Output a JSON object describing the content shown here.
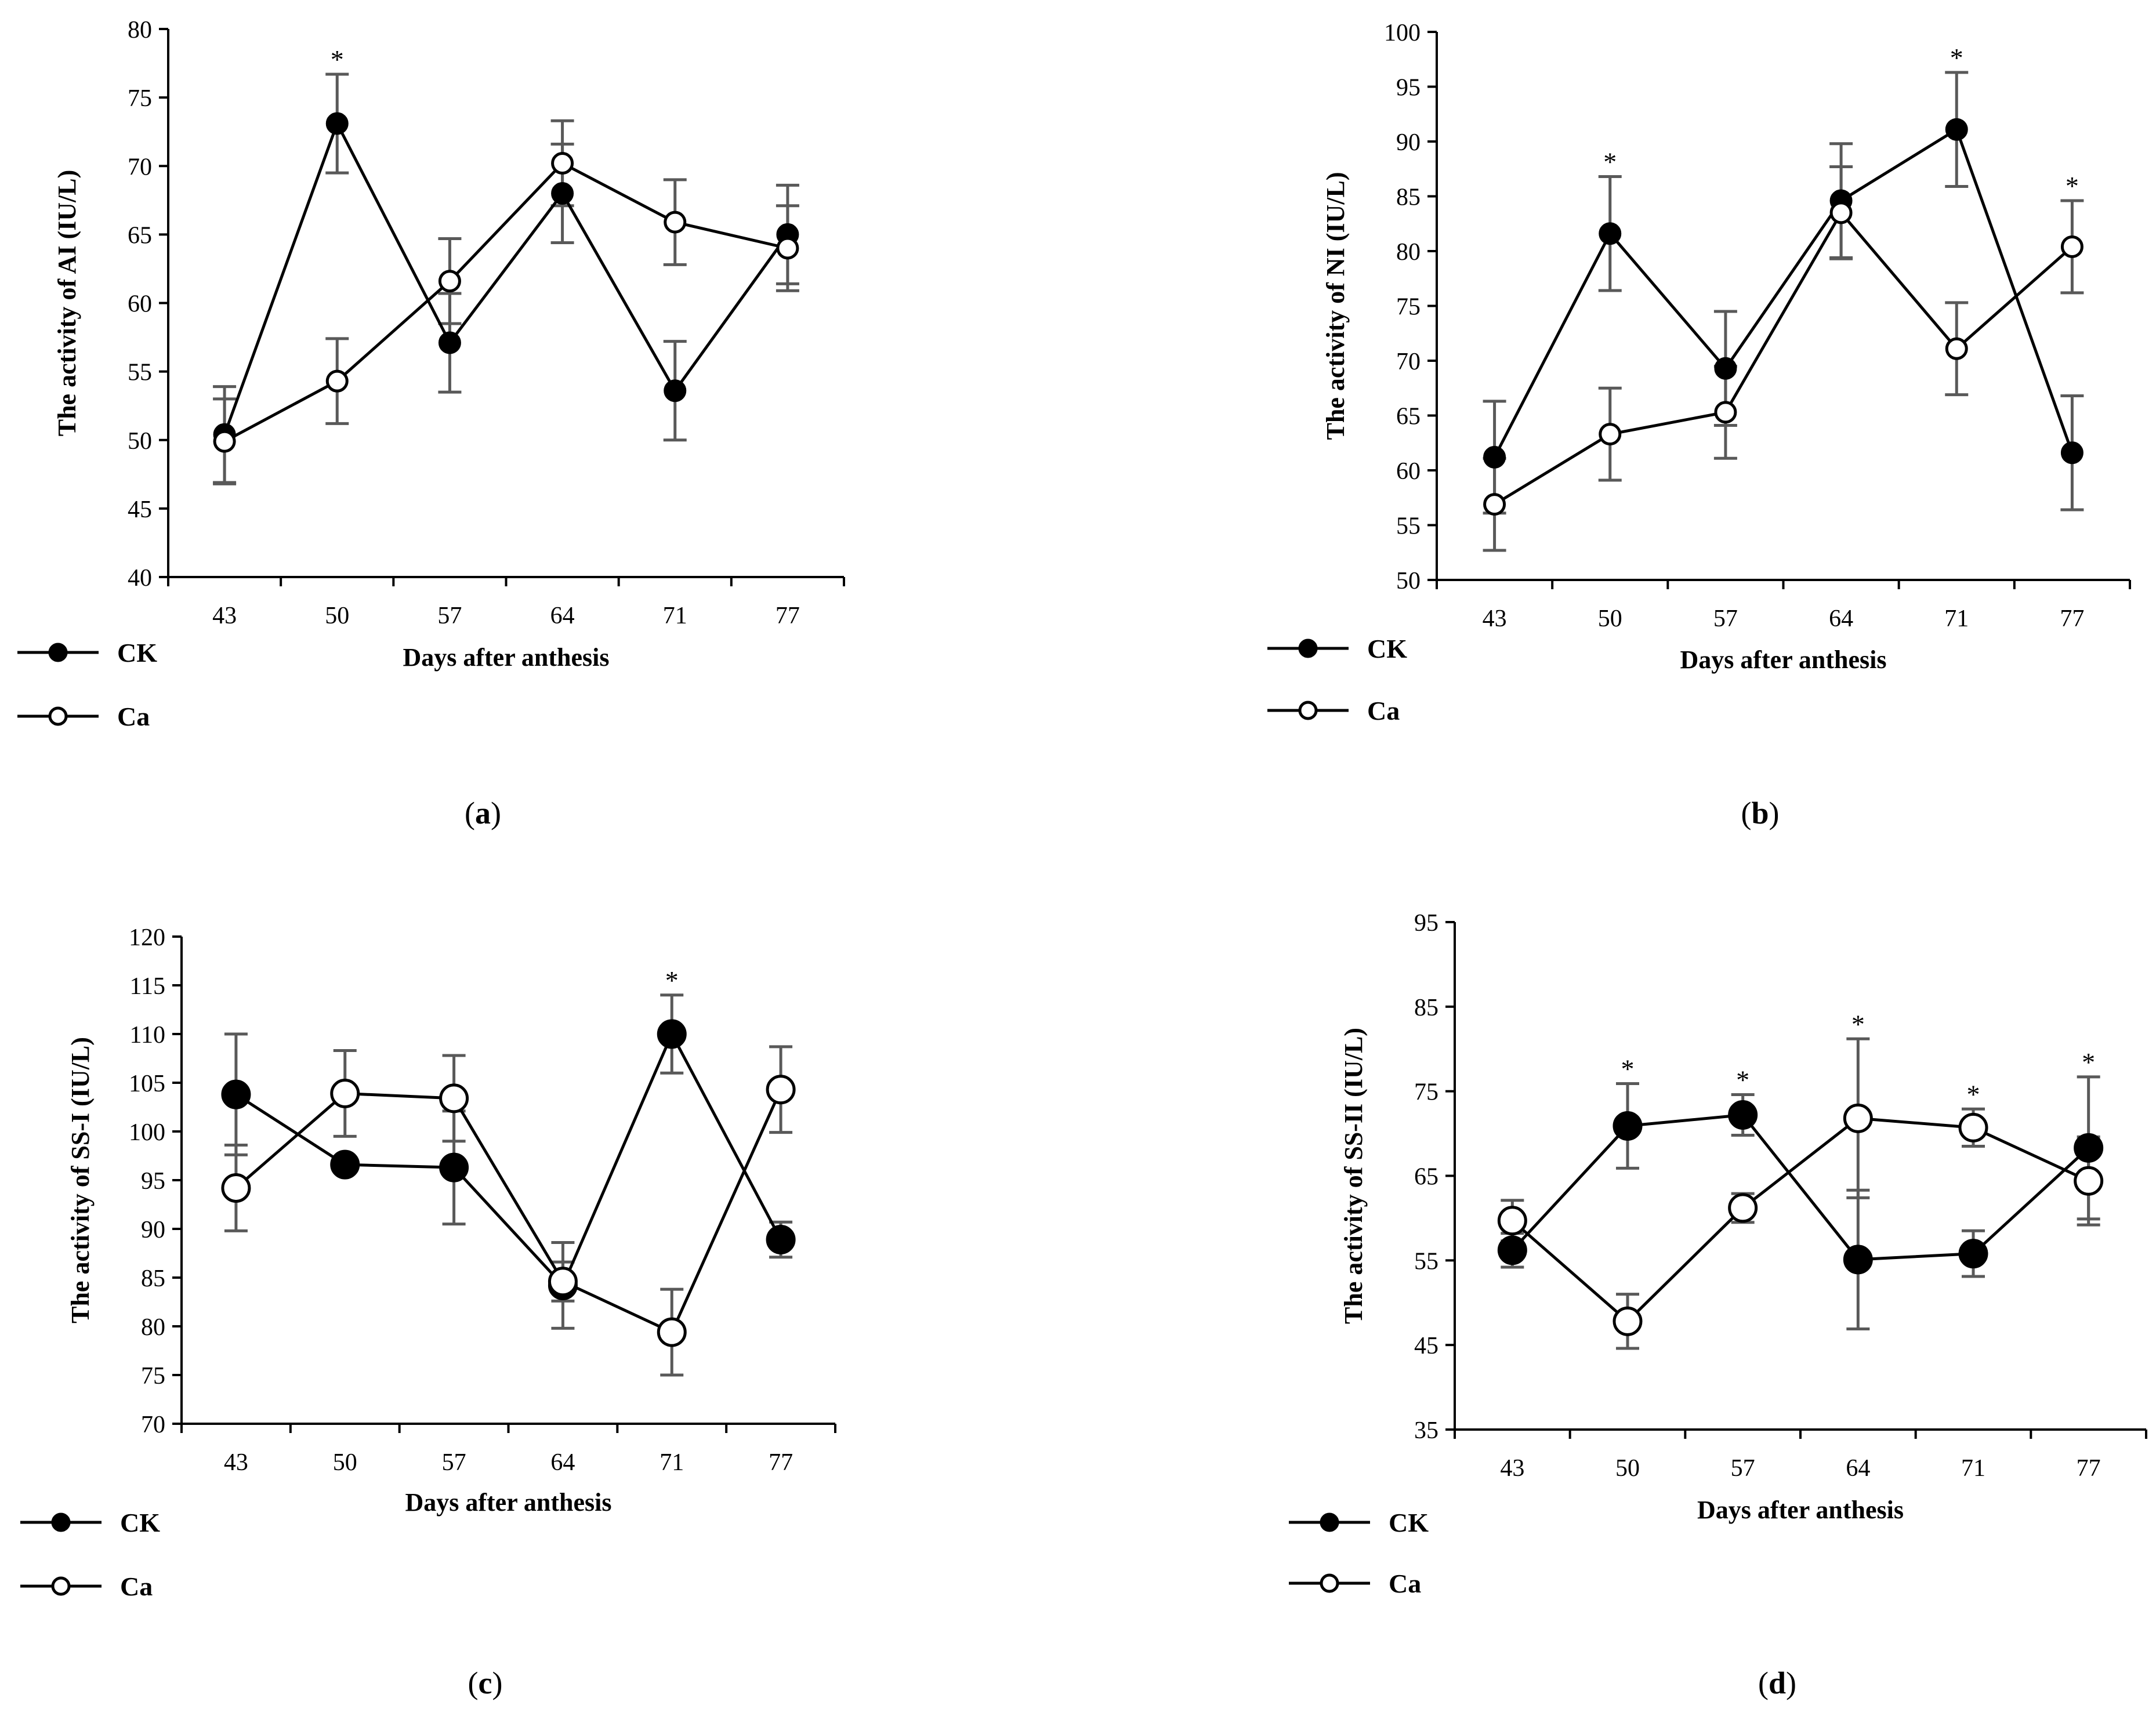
{
  "figure": {
    "colors": {
      "line": "#000000",
      "error_bar": "#595959",
      "marker_fill_ck": "#000000",
      "marker_fill_ca": "#ffffff"
    }
  },
  "chart_data": [
    {
      "type": "line",
      "panel_label": "(a)",
      "xlabel": "Days after anthesis",
      "ylabel": "The activity of AI (IU/L)",
      "categories": [
        "43",
        "50",
        "57",
        "64",
        "71",
        "77"
      ],
      "ylim": [
        40,
        80
      ],
      "yticks": [
        40,
        45,
        50,
        55,
        60,
        65,
        70,
        75,
        80
      ],
      "series": [
        {
          "name": "CK",
          "marker": "filled-circle",
          "values": [
            50.4,
            73.1,
            57.1,
            68.0,
            53.6,
            65.0
          ],
          "errors": [
            3.5,
            3.6,
            3.6,
            3.6,
            3.6,
            3.6
          ]
        },
        {
          "name": "Ca",
          "marker": "open-circle",
          "values": [
            49.9,
            54.3,
            61.6,
            70.2,
            65.9,
            64.0
          ],
          "errors": [
            3.1,
            3.1,
            3.1,
            3.1,
            3.1,
            3.1
          ]
        }
      ],
      "significance": [
        {
          "category": "50",
          "label": "*"
        }
      ],
      "legend": [
        "CK",
        "Ca"
      ]
    },
    {
      "type": "line",
      "panel_label": "(b)",
      "xlabel": "Days after anthesis",
      "ylabel": "The activity of NI (IU/L)",
      "categories": [
        "43",
        "50",
        "57",
        "64",
        "71",
        "77"
      ],
      "ylim": [
        50,
        100
      ],
      "yticks": [
        50,
        55,
        60,
        65,
        70,
        75,
        80,
        85,
        90,
        95,
        100
      ],
      "series": [
        {
          "name": "CK",
          "marker": "filled-circle",
          "values": [
            61.2,
            81.6,
            69.3,
            84.6,
            91.1,
            61.6
          ],
          "errors": [
            5.1,
            5.2,
            5.2,
            5.2,
            5.2,
            5.2
          ]
        },
        {
          "name": "Ca",
          "marker": "open-circle",
          "values": [
            56.9,
            63.3,
            65.3,
            83.5,
            71.1,
            80.4
          ],
          "errors": [
            4.2,
            4.2,
            4.2,
            4.2,
            4.2,
            4.2
          ]
        }
      ],
      "significance": [
        {
          "category": "50",
          "label": "*"
        },
        {
          "category": "71",
          "label": "*"
        },
        {
          "category": "77",
          "label": "*"
        }
      ],
      "legend": [
        "CK",
        "Ca"
      ]
    },
    {
      "type": "line",
      "panel_label": "(c)",
      "xlabel": "Days after anthesis",
      "ylabel": "The activity of SS-I (IU/L)",
      "categories": [
        "43",
        "50",
        "57",
        "64",
        "71",
        "77"
      ],
      "ylim": [
        70,
        120
      ],
      "yticks": [
        70,
        75,
        80,
        85,
        90,
        95,
        100,
        105,
        110,
        115,
        120
      ],
      "series": [
        {
          "name": "CK",
          "marker": "filled-circle",
          "values": [
            103.8,
            96.6,
            96.3,
            84.2,
            110.0,
            88.9
          ],
          "errors": [
            6.2,
            0,
            5.8,
            4.4,
            4.0,
            1.8
          ]
        },
        {
          "name": "Ca",
          "marker": "open-circle",
          "values": [
            94.2,
            103.9,
            103.4,
            84.6,
            79.4,
            104.3
          ],
          "errors": [
            4.4,
            4.4,
            4.4,
            2.0,
            4.4,
            4.4
          ]
        }
      ],
      "significance": [
        {
          "category": "71",
          "label": "*"
        }
      ],
      "legend": [
        "CK",
        "Ca"
      ]
    },
    {
      "type": "line",
      "panel_label": "(d)",
      "xlabel": "Days after anthesis",
      "ylabel": "The activity of SS-II (IU/L)",
      "categories": [
        "43",
        "50",
        "57",
        "64",
        "71",
        "77"
      ],
      "ylim": [
        35,
        95
      ],
      "yticks": [
        35,
        45,
        55,
        65,
        75,
        85,
        95
      ],
      "series": [
        {
          "name": "CK",
          "marker": "filled-circle",
          "values": [
            56.2,
            70.9,
            72.2,
            55.1,
            55.8,
            68.3
          ],
          "errors": [
            2.0,
            5.0,
            2.4,
            8.2,
            2.7,
            8.4
          ]
        },
        {
          "name": "Ca",
          "marker": "open-circle",
          "values": [
            59.7,
            47.8,
            61.2,
            71.8,
            70.7,
            64.4
          ],
          "errors": [
            2.4,
            3.2,
            1.7,
            9.4,
            2.2,
            5.2
          ]
        }
      ],
      "significance": [
        {
          "category": "50",
          "label": "*"
        },
        {
          "category": "57",
          "label": "*"
        },
        {
          "category": "64",
          "label": "*"
        },
        {
          "category": "71",
          "label": "*"
        },
        {
          "category": "77",
          "label": "*"
        }
      ],
      "legend": [
        "CK",
        "Ca"
      ]
    }
  ]
}
